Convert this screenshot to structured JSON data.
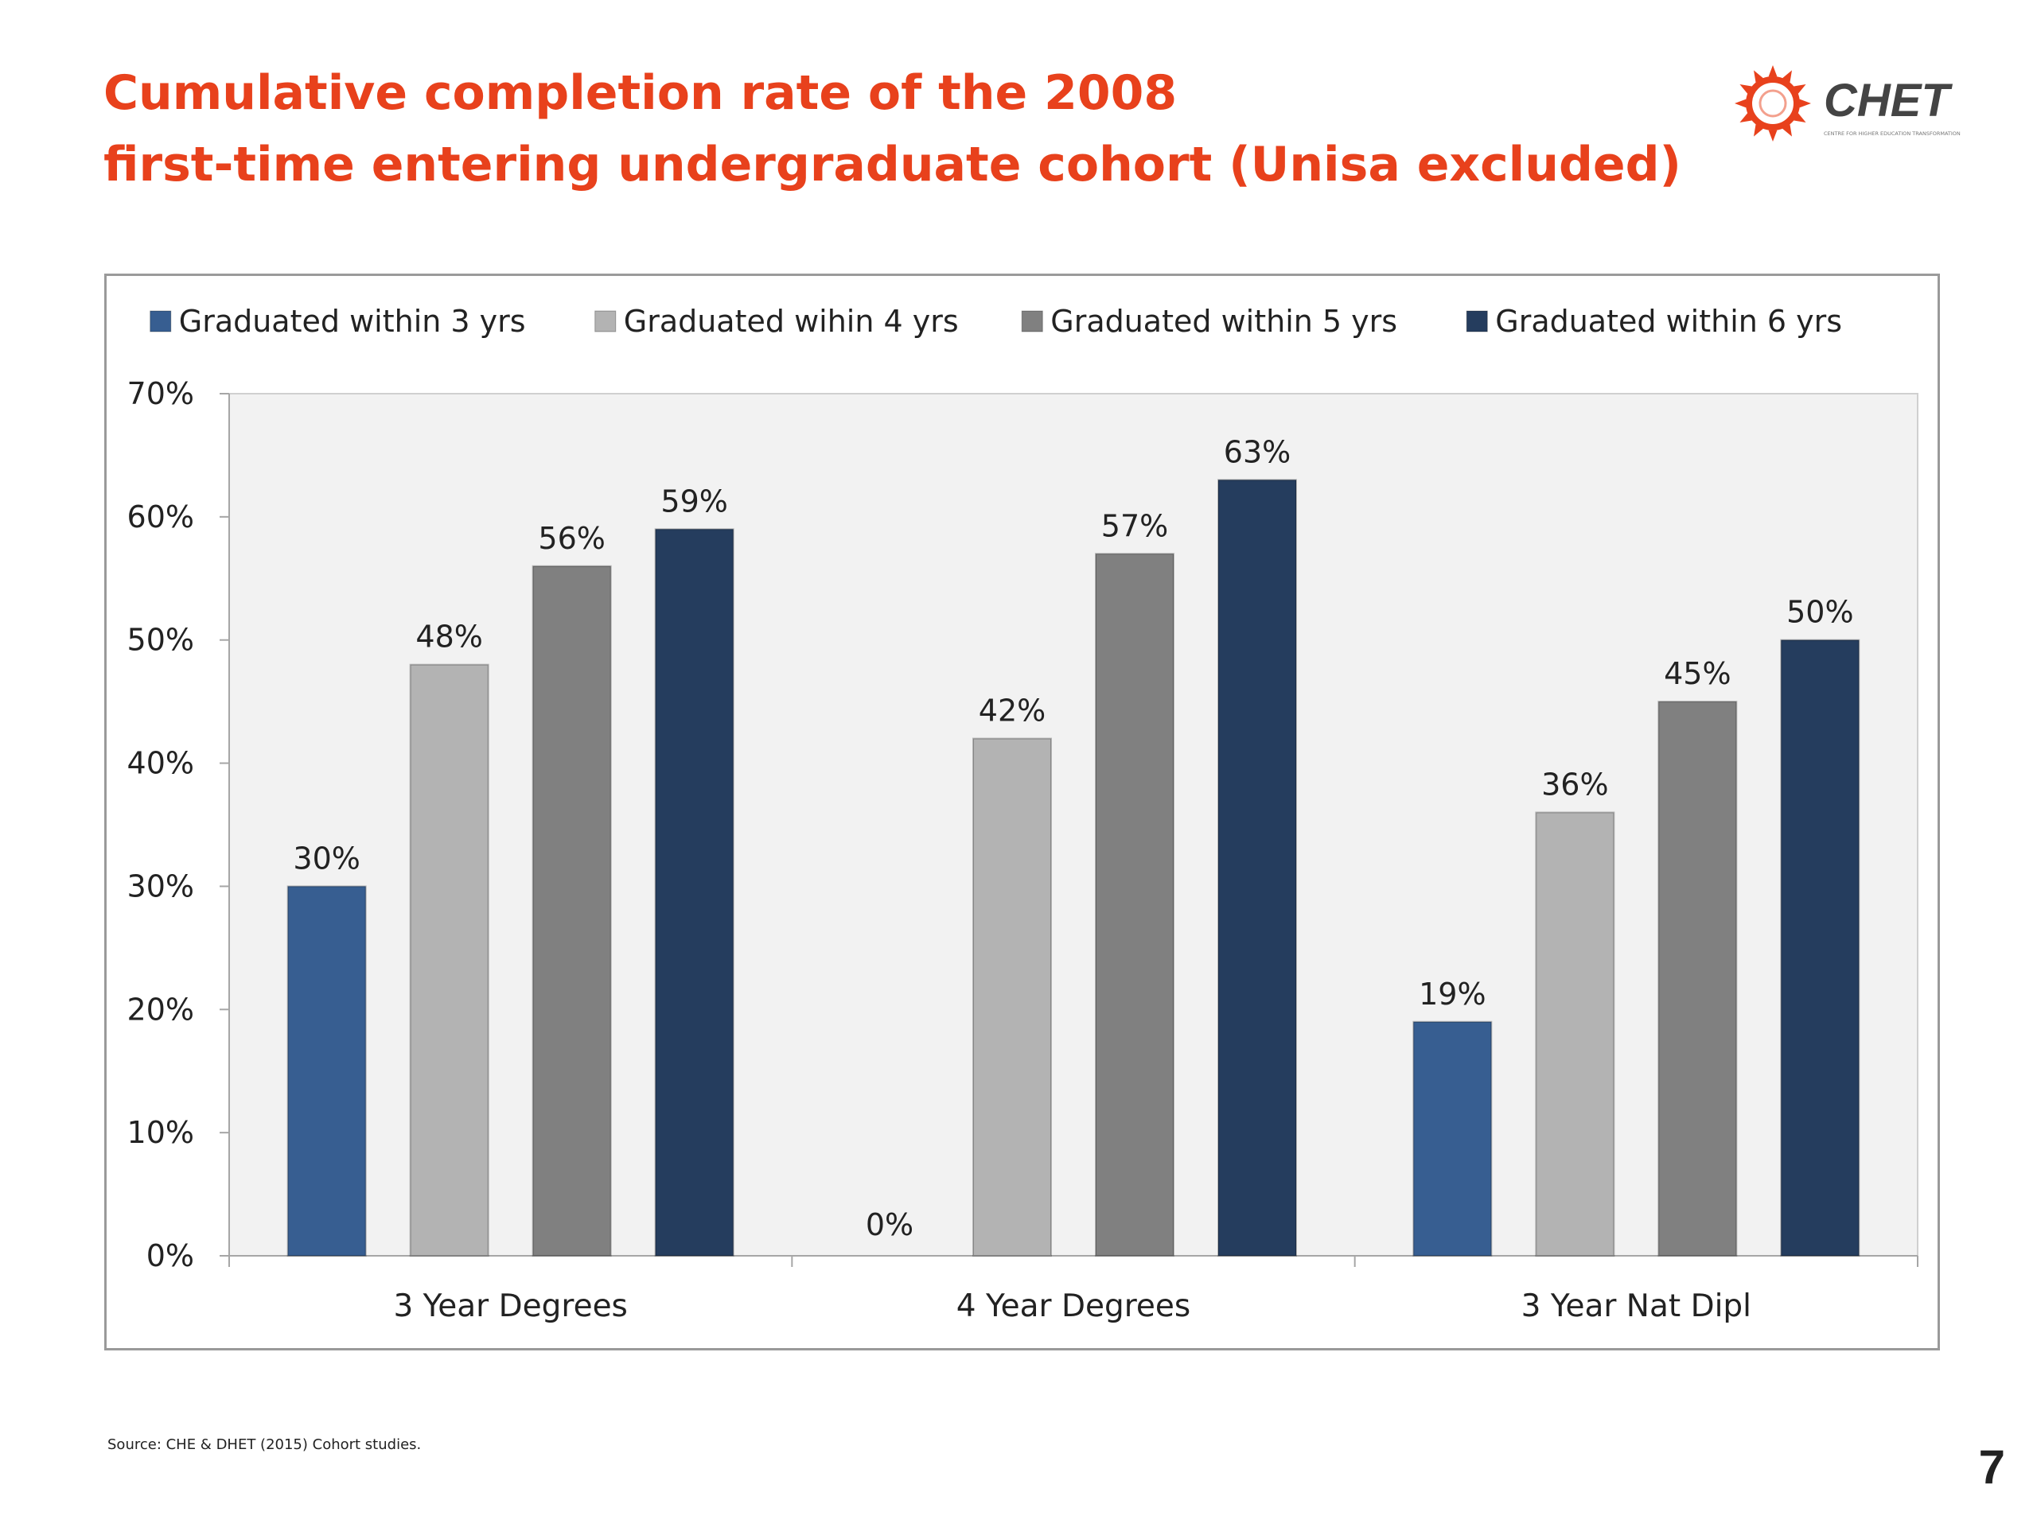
{
  "slide": {
    "title_line1": "Cumulative completion rate of the 2008",
    "title_line2": "first-time entering undergraduate cohort (Unisa excluded)",
    "source": "Source: CHE & DHET (2015) Cohort studies.",
    "page_number": "7",
    "logo": {
      "text": "CHET",
      "subtext": "CENTRE FOR HIGHER EDUCATION TRANSFORMATION",
      "icon": "sun-gear-icon",
      "colors": {
        "icon": "#e8411c",
        "text": "#444444"
      }
    },
    "colors": {
      "title": "#e8411c"
    }
  },
  "chart_data": {
    "type": "bar",
    "categories": [
      "3 Year Degrees",
      "4 Year Degrees",
      "3 Year Nat Dipl"
    ],
    "series": [
      {
        "name": "Graduated within 3 yrs",
        "values": [
          30,
          0,
          19
        ],
        "labels": [
          "30%",
          "0%",
          "19%"
        ],
        "color": "#375e91"
      },
      {
        "name": "Graduated wihin 4 yrs",
        "values": [
          48,
          42,
          36
        ],
        "labels": [
          "48%",
          "42%",
          "36%"
        ],
        "color": "#b3b3b3"
      },
      {
        "name": "Graduated within 5 yrs",
        "values": [
          56,
          57,
          45
        ],
        "labels": [
          "56%",
          "57%",
          "45%"
        ],
        "color": "#808080"
      },
      {
        "name": "Graduated within 6 yrs",
        "values": [
          59,
          63,
          50
        ],
        "labels": [
          "59%",
          "63%",
          "50%"
        ],
        "color": "#253d5e"
      }
    ],
    "y_ticks": [
      "0%",
      "10%",
      "20%",
      "30%",
      "40%",
      "50%",
      "60%",
      "70%"
    ],
    "ylim": [
      0,
      70
    ],
    "grid": false,
    "legend": "top",
    "plot_background": "#f2f2f2"
  }
}
